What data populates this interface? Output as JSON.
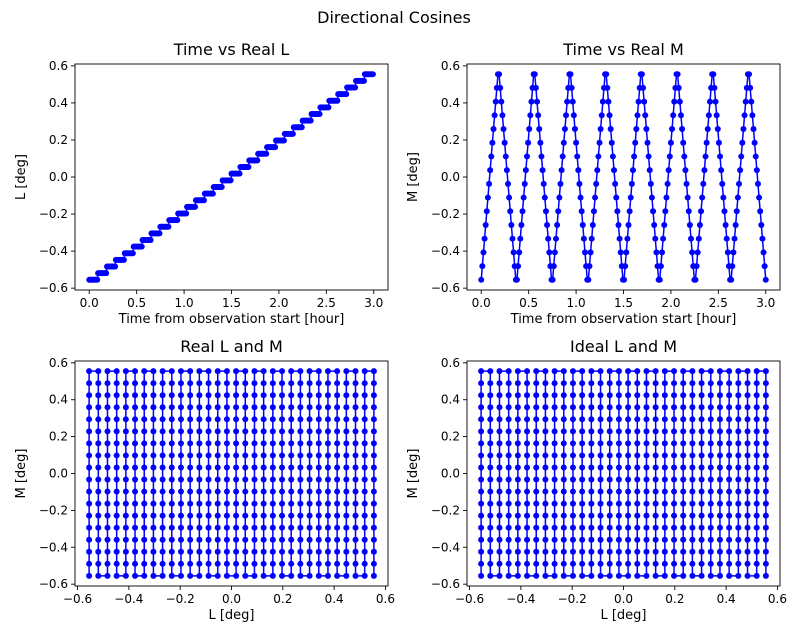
{
  "figure_title": "Directional Cosines",
  "colors": {
    "series": "#0000ff",
    "frame": "#000000"
  },
  "chart_data": [
    {
      "type": "line",
      "title": "Time vs Real L",
      "xlabel": "Time from observation start [hour]",
      "ylabel": "L [deg]",
      "xlim": [
        -0.15,
        3.15
      ],
      "ylim": [
        -0.61,
        0.61
      ],
      "xticks": [
        0.0,
        0.5,
        1.0,
        1.5,
        2.0,
        2.5,
        3.0
      ],
      "xtick_labels": [
        "0.0",
        "0.5",
        "1.0",
        "1.5",
        "2.0",
        "2.5",
        "3.0"
      ],
      "yticks": [
        -0.6,
        -0.4,
        -0.2,
        0.0,
        0.2,
        0.4,
        0.6
      ],
      "ytick_labels": [
        "−0.6",
        "−0.4",
        "−0.2",
        "0.0",
        "0.2",
        "0.4",
        "0.6"
      ],
      "marker": "o",
      "series": [
        {
          "pattern": "staircase",
          "x": [
            0.0,
            3.0
          ],
          "y": [
            -0.555,
            0.555
          ],
          "steps": 32,
          "points_per_step": 8,
          "step_spacing_x": 0.0968
        }
      ]
    },
    {
      "type": "line",
      "title": "Time vs Real M",
      "xlabel": "Time from observation start [hour]",
      "ylabel": "M [deg]",
      "xlim": [
        -0.15,
        3.15
      ],
      "ylim": [
        -0.61,
        0.61
      ],
      "xticks": [
        0.0,
        0.5,
        1.0,
        1.5,
        2.0,
        2.5,
        3.0
      ],
      "xtick_labels": [
        "0.0",
        "0.5",
        "1.0",
        "1.5",
        "2.0",
        "2.5",
        "3.0"
      ],
      "yticks": [
        -0.6,
        -0.4,
        -0.2,
        0.0,
        0.2,
        0.4,
        0.6
      ],
      "ytick_labels": [
        "−0.6",
        "−0.4",
        "−0.2",
        "0.0",
        "0.2",
        "0.4",
        "0.6"
      ],
      "marker": "o",
      "series": [
        {
          "pattern": "zigzag",
          "x_range": [
            0.0,
            3.0
          ],
          "y_range": [
            -0.555,
            0.555
          ],
          "sweeps": 16,
          "points_per_sweep": 16
        }
      ]
    },
    {
      "type": "scatter",
      "title": "Real L and M",
      "xlabel": "L [deg]",
      "ylabel": "M [deg]",
      "xlim": [
        -0.61,
        0.61
      ],
      "ylim": [
        -0.61,
        0.61
      ],
      "xticks": [
        -0.6,
        -0.4,
        -0.2,
        0.0,
        0.2,
        0.4,
        0.6
      ],
      "xtick_labels": [
        "−0.6",
        "−0.4",
        "−0.2",
        "0.0",
        "0.2",
        "0.4",
        "0.6"
      ],
      "yticks": [
        -0.6,
        -0.4,
        -0.2,
        0.0,
        0.2,
        0.4,
        0.6
      ],
      "ytick_labels": [
        "−0.6",
        "−0.4",
        "−0.2",
        "0.0",
        "0.2",
        "0.4",
        "0.6"
      ],
      "marker": "o",
      "series": [
        {
          "pattern": "vertical_grid",
          "x_range": [
            -0.555,
            0.555
          ],
          "y_range": [
            -0.555,
            0.555
          ],
          "columns": 32,
          "points_per_column": 18
        }
      ]
    },
    {
      "type": "scatter",
      "title": "Ideal L and M",
      "xlabel": "L [deg]",
      "ylabel": "M [deg]",
      "xlim": [
        -0.61,
        0.61
      ],
      "ylim": [
        -0.61,
        0.61
      ],
      "xticks": [
        -0.6,
        -0.4,
        -0.2,
        0.0,
        0.2,
        0.4,
        0.6
      ],
      "xtick_labels": [
        "−0.6",
        "−0.4",
        "−0.2",
        "0.0",
        "0.2",
        "0.4",
        "0.6"
      ],
      "yticks": [
        -0.6,
        -0.4,
        -0.2,
        0.0,
        0.2,
        0.4,
        0.6
      ],
      "ytick_labels": [
        "−0.6",
        "−0.4",
        "−0.2",
        "0.0",
        "0.2",
        "0.4",
        "0.6"
      ],
      "marker": "o",
      "series": [
        {
          "pattern": "vertical_grid",
          "x_range": [
            -0.555,
            0.555
          ],
          "y_range": [
            -0.555,
            0.555
          ],
          "columns": 32,
          "points_per_column": 18
        }
      ]
    }
  ]
}
